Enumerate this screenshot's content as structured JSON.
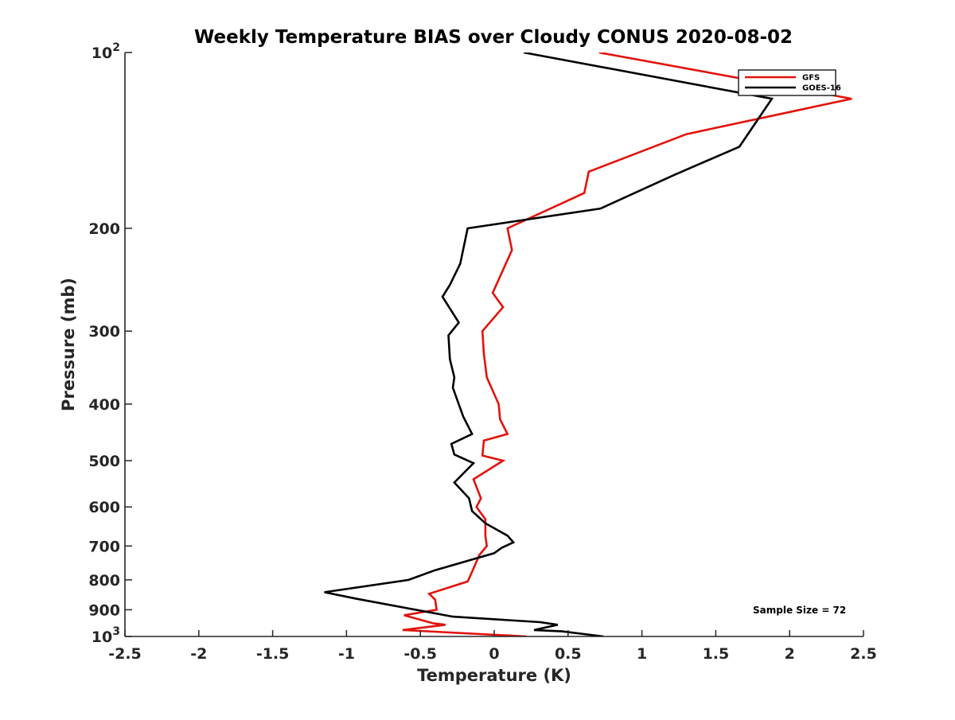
{
  "chart_data": {
    "type": "line",
    "title": "Weekly Temperature BIAS over Cloudy CONUS 2020-08-02",
    "xlabel": "Temperature (K)",
    "ylabel": "Pressure (mb)",
    "xlim": [
      -2.5,
      2.5
    ],
    "ylim": [
      1000,
      100
    ],
    "y_scale": "log",
    "y_reversed": true,
    "grid": false,
    "legend_position": "top-right",
    "x_ticks": [
      "-2.5",
      "-2",
      "-1.5",
      "-1",
      "-0.5",
      "0",
      "0.5",
      "1",
      "1.5",
      "2",
      "2.5"
    ],
    "y_ticks": [
      {
        "value": 100,
        "label": "10",
        "sup": "2"
      },
      {
        "value": 200,
        "label": "200",
        "sup": ""
      },
      {
        "value": 300,
        "label": "300",
        "sup": ""
      },
      {
        "value": 400,
        "label": "400",
        "sup": ""
      },
      {
        "value": 500,
        "label": "500",
        "sup": ""
      },
      {
        "value": 600,
        "label": "600",
        "sup": ""
      },
      {
        "value": 700,
        "label": "700",
        "sup": ""
      },
      {
        "value": 800,
        "label": "800",
        "sup": ""
      },
      {
        "value": 900,
        "label": "900",
        "sup": ""
      },
      {
        "value": 1000,
        "label": "10",
        "sup": "3"
      }
    ],
    "annotation": "Sample Size = 72",
    "series": [
      {
        "name": "GFS",
        "color": "#e3120b",
        "points": [
          [
            0.71,
            100
          ],
          [
            2.42,
            120
          ],
          [
            1.3,
            138
          ],
          [
            0.64,
            160
          ],
          [
            0.61,
            174
          ],
          [
            0.09,
            200
          ],
          [
            0.12,
            218
          ],
          [
            -0.01,
            258
          ],
          [
            0.06,
            273
          ],
          [
            -0.08,
            300
          ],
          [
            -0.07,
            328
          ],
          [
            -0.05,
            360
          ],
          [
            0.03,
            400
          ],
          [
            0.04,
            425
          ],
          [
            0.09,
            450
          ],
          [
            -0.07,
            462
          ],
          [
            -0.08,
            490
          ],
          [
            0.06,
            500
          ],
          [
            -0.14,
            538
          ],
          [
            -0.09,
            580
          ],
          [
            -0.12,
            600
          ],
          [
            -0.06,
            630
          ],
          [
            -0.06,
            672
          ],
          [
            -0.05,
            700
          ],
          [
            -0.1,
            725
          ],
          [
            -0.15,
            775
          ],
          [
            -0.18,
            805
          ],
          [
            -0.44,
            845
          ],
          [
            -0.4,
            865
          ],
          [
            -0.39,
            900
          ],
          [
            -0.61,
            920
          ],
          [
            -0.41,
            950
          ],
          [
            -0.33,
            955
          ],
          [
            -0.62,
            975
          ],
          [
            0.22,
            1000
          ]
        ]
      },
      {
        "name": "GOES-16",
        "color": "#000000",
        "points": [
          [
            0.2,
            100
          ],
          [
            1.88,
            120
          ],
          [
            1.66,
            145
          ],
          [
            1.22,
            162
          ],
          [
            0.72,
            185
          ],
          [
            -0.18,
            200
          ],
          [
            -0.23,
            230
          ],
          [
            -0.3,
            250
          ],
          [
            -0.35,
            262
          ],
          [
            -0.24,
            290
          ],
          [
            -0.31,
            305
          ],
          [
            -0.3,
            335
          ],
          [
            -0.27,
            360
          ],
          [
            -0.28,
            375
          ],
          [
            -0.21,
            420
          ],
          [
            -0.15,
            450
          ],
          [
            -0.29,
            468
          ],
          [
            -0.27,
            488
          ],
          [
            -0.14,
            505
          ],
          [
            -0.27,
            545
          ],
          [
            -0.17,
            580
          ],
          [
            -0.15,
            610
          ],
          [
            -0.06,
            640
          ],
          [
            0.09,
            672
          ],
          [
            0.13,
            690
          ],
          [
            0.05,
            705
          ],
          [
            0.0,
            720
          ],
          [
            -0.4,
            770
          ],
          [
            -0.58,
            800
          ],
          [
            -1.15,
            840
          ],
          [
            -0.93,
            862
          ],
          [
            -0.48,
            905
          ],
          [
            -0.28,
            925
          ],
          [
            0.31,
            945
          ],
          [
            0.43,
            955
          ],
          [
            0.27,
            975
          ],
          [
            0.46,
            980
          ],
          [
            0.74,
            1000
          ]
        ]
      }
    ]
  }
}
